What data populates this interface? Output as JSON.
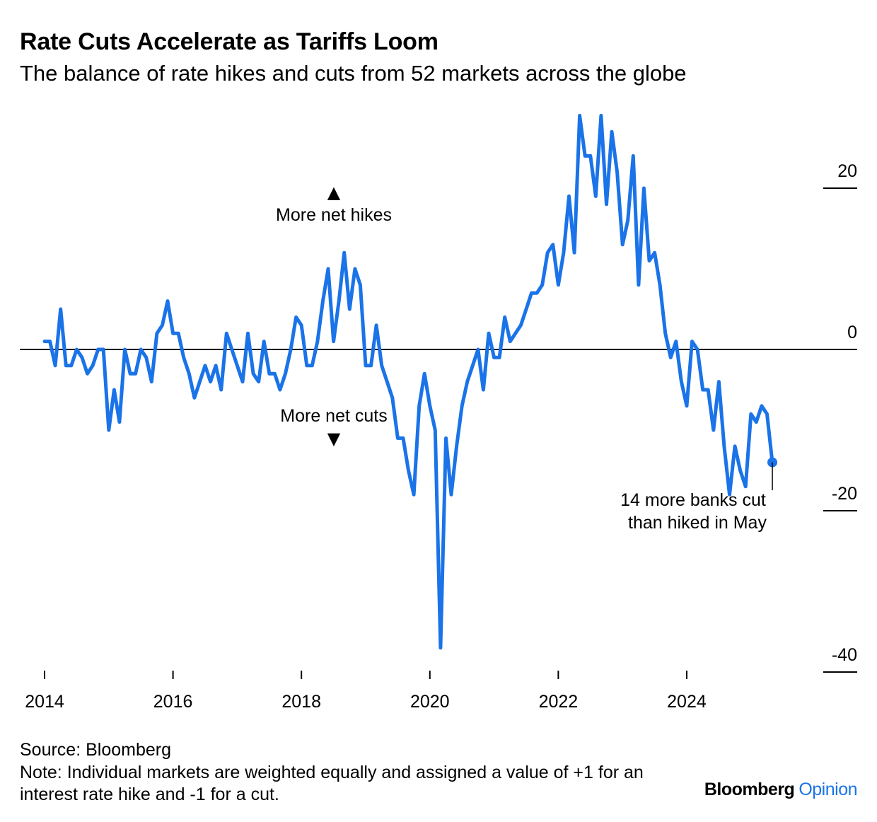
{
  "title": "Rate Cuts Accelerate as Tariffs Loom",
  "subtitle": "The balance of rate hikes and cuts from 52 markets across the globe",
  "source": "Source: Bloomberg",
  "note": "Note: Individual markets are weighted equally and assigned a value of +1 for an interest rate hike and -1 for a cut.",
  "brand": {
    "name": "Bloomberg",
    "accent": "Opinion"
  },
  "colors": {
    "line": "#1a73e8",
    "axis": "#000000",
    "text": "#000000",
    "brand_accent": "#1a73e8"
  },
  "annotations": {
    "hikes_label": "More net hikes",
    "hikes_arrow": "▲",
    "cuts_label": "More net cuts",
    "cuts_arrow": "▼",
    "latest_line1": "14 more banks cut",
    "latest_line2": "than hiked in May"
  },
  "chart_data": {
    "type": "line",
    "xlabel": "",
    "ylabel": "",
    "x_ticks": [
      "2014",
      "2016",
      "2018",
      "2020",
      "2022",
      "2024"
    ],
    "y_ticks": [
      20,
      0,
      -20,
      -40
    ],
    "xlim": [
      "2014-01",
      "2025-12"
    ],
    "ylim": [
      -40,
      28
    ],
    "grid": false,
    "zero_line": true,
    "legend": "none",
    "y_axis_side": "right",
    "series": [
      {
        "x": [
          "2014-01",
          "2014-02",
          "2014-03",
          "2014-04",
          "2014-05",
          "2014-06",
          "2014-07",
          "2014-08",
          "2014-09",
          "2014-10",
          "2014-11",
          "2014-12",
          "2015-01",
          "2015-02",
          "2015-03",
          "2015-04",
          "2015-05",
          "2015-06",
          "2015-07",
          "2015-08",
          "2015-09",
          "2015-10",
          "2015-11",
          "2015-12",
          "2016-01",
          "2016-02",
          "2016-03",
          "2016-04",
          "2016-05",
          "2016-06",
          "2016-07",
          "2016-08",
          "2016-09",
          "2016-10",
          "2016-11",
          "2016-12",
          "2017-01",
          "2017-02",
          "2017-03",
          "2017-04",
          "2017-05",
          "2017-06",
          "2017-07",
          "2017-08",
          "2017-09",
          "2017-10",
          "2017-11",
          "2017-12",
          "2018-01",
          "2018-02",
          "2018-03",
          "2018-04",
          "2018-05",
          "2018-06",
          "2018-07",
          "2018-08",
          "2018-09",
          "2018-10",
          "2018-11",
          "2018-12",
          "2019-01",
          "2019-02",
          "2019-03",
          "2019-04",
          "2019-05",
          "2019-06",
          "2019-07",
          "2019-08",
          "2019-09",
          "2019-10",
          "2019-11",
          "2019-12",
          "2020-01",
          "2020-02",
          "2020-03",
          "2020-04",
          "2020-05",
          "2020-06",
          "2020-07",
          "2020-08",
          "2020-09",
          "2020-10",
          "2020-11",
          "2020-12",
          "2021-01",
          "2021-02",
          "2021-03",
          "2021-04",
          "2021-05",
          "2021-06",
          "2021-07",
          "2021-08",
          "2021-09",
          "2021-10",
          "2021-11",
          "2021-12",
          "2022-01",
          "2022-02",
          "2022-03",
          "2022-04",
          "2022-05",
          "2022-06",
          "2022-07",
          "2022-08",
          "2022-09",
          "2022-10",
          "2022-11",
          "2022-12",
          "2023-01",
          "2023-02",
          "2023-03",
          "2023-04",
          "2023-05",
          "2023-06",
          "2023-07",
          "2023-08",
          "2023-09",
          "2023-10",
          "2023-11",
          "2023-12",
          "2024-01",
          "2024-02",
          "2024-03",
          "2024-04",
          "2024-05",
          "2024-06",
          "2024-07",
          "2024-08",
          "2024-09",
          "2024-10",
          "2024-11",
          "2024-12",
          "2025-01",
          "2025-02",
          "2025-03",
          "2025-04",
          "2025-05"
        ],
        "y": [
          1,
          1,
          -2,
          5,
          -2,
          -2,
          0,
          -1,
          -3,
          -2,
          0,
          0,
          -10,
          -5,
          -9,
          0,
          -3,
          -3,
          0,
          -1,
          -4,
          2,
          3,
          6,
          2,
          2,
          -1,
          -3,
          -6,
          -4,
          -2,
          -4,
          -2,
          -5,
          2,
          0,
          -2,
          -4,
          2,
          -3,
          -4,
          1,
          -3,
          -3,
          -5,
          -3,
          0,
          4,
          3,
          -2,
          -2,
          1,
          6,
          10,
          1,
          6,
          12,
          5,
          10,
          8,
          -2,
          -2,
          3,
          -2,
          -4,
          -6,
          -11,
          -11,
          -15,
          -18,
          -7,
          -3,
          -7,
          -10,
          -37,
          -11,
          -18,
          -12,
          -7,
          -4,
          -2,
          0,
          -5,
          2,
          -1,
          -1,
          4,
          1,
          2,
          3,
          5,
          7,
          7,
          8,
          12,
          13,
          8,
          12,
          19,
          12,
          29,
          24,
          24,
          19,
          29,
          18,
          27,
          22,
          13,
          16,
          24,
          8,
          20,
          11,
          12,
          8,
          2,
          -1,
          1,
          -4,
          -7,
          1,
          0,
          -5,
          -5,
          -10,
          -4,
          -12,
          -18,
          -12,
          -15,
          -17,
          -8,
          -9,
          -7,
          -8,
          -14
        ]
      }
    ],
    "latest_value": -14
  }
}
